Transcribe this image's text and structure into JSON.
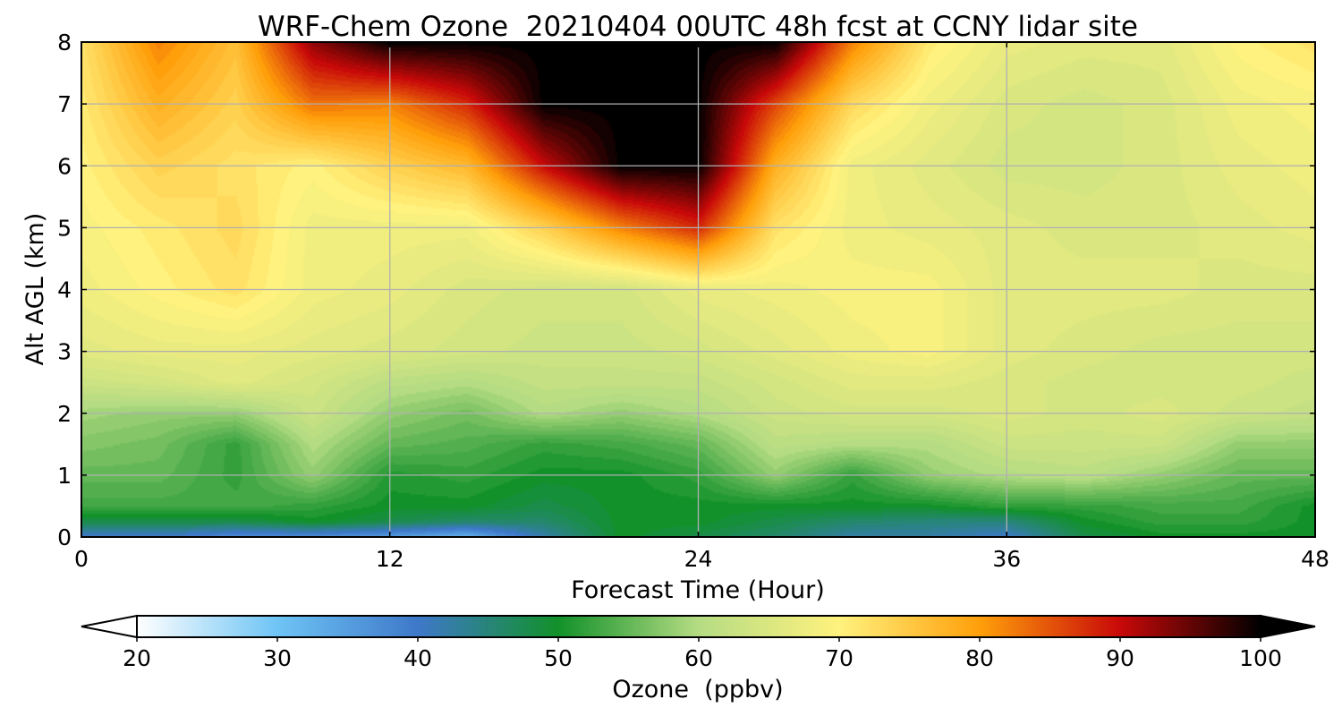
{
  "chart_data": {
    "type": "heatmap",
    "title": "WRF-Chem Ozone  20210404 00UTC 48h fcst at CCNY lidar site",
    "xlabel": "Forecast Time (Hour)",
    "ylabel": "Alt AGL (km)",
    "xlim": [
      0,
      48
    ],
    "ylim": [
      0,
      8
    ],
    "x_ticks": [
      0,
      12,
      24,
      36,
      48
    ],
    "y_ticks": [
      0,
      1,
      2,
      3,
      4,
      5,
      6,
      7,
      8
    ],
    "grid": true,
    "x_hours": [
      0,
      3,
      6,
      9,
      12,
      15,
      18,
      21,
      24,
      27,
      30,
      33,
      36,
      39,
      42,
      45,
      48
    ],
    "z_km": [
      0,
      0.25,
      0.5,
      1,
      1.5,
      2,
      2.5,
      3,
      4,
      5,
      6,
      7,
      8
    ],
    "values_ppbv": [
      [
        40,
        40,
        37,
        37,
        35,
        32,
        42,
        50,
        48,
        46,
        42,
        42,
        40,
        48,
        50,
        50,
        50
      ],
      [
        48,
        48,
        48,
        50,
        48,
        46,
        46,
        50,
        50,
        48,
        46,
        45,
        45,
        50,
        52,
        52,
        50
      ],
      [
        53,
        53,
        53,
        52,
        50,
        50,
        48,
        50,
        50,
        50,
        50,
        50,
        52,
        52,
        53,
        53,
        50
      ],
      [
        55,
        55,
        52,
        58,
        51,
        52,
        50,
        50,
        52,
        58,
        52,
        58,
        60,
        61,
        58,
        55,
        55
      ],
      [
        57,
        56,
        52,
        60,
        55,
        54,
        52,
        53,
        55,
        61,
        60,
        60,
        63,
        63,
        63,
        58,
        58
      ],
      [
        59,
        58,
        58,
        63,
        58,
        56,
        60,
        58,
        60,
        63,
        64,
        64,
        65,
        64,
        65,
        63,
        62
      ],
      [
        63,
        64,
        66,
        64,
        61,
        60,
        62,
        62,
        62,
        64,
        66,
        66,
        65,
        64,
        64,
        64,
        63
      ],
      [
        66,
        67,
        67,
        66,
        65,
        64,
        63,
        63,
        64,
        66,
        68,
        69,
        66,
        65,
        64,
        64,
        64
      ],
      [
        68,
        70,
        72,
        68,
        67,
        65,
        64,
        64,
        67,
        68,
        69,
        69,
        66,
        66,
        66,
        65,
        65
      ],
      [
        69,
        71,
        73,
        68,
        68,
        68,
        74,
        82,
        88,
        72,
        68,
        67,
        66,
        65,
        65,
        66,
        67
      ],
      [
        70,
        74,
        72,
        70,
        74,
        77,
        90,
        100,
        100,
        78,
        68,
        66,
        64,
        64,
        65,
        67,
        68
      ],
      [
        71,
        78,
        74,
        83,
        82,
        88,
        100,
        100,
        100,
        86,
        73,
        68,
        65,
        64,
        65,
        68,
        69
      ],
      [
        72,
        82,
        76,
        93,
        100,
        100,
        100,
        100,
        100,
        100,
        82,
        71,
        67,
        66,
        66,
        70,
        72
      ]
    ],
    "colorbar": {
      "label": "Ozone  (ppbv)",
      "ticks": [
        20,
        30,
        40,
        50,
        60,
        70,
        80,
        90,
        100
      ],
      "min": 20,
      "max": 100,
      "extend": "both",
      "colors": [
        "#ffffff",
        "#6ec4f5",
        "#3e78c9",
        "#12912a",
        "#b5dc83",
        "#fff27e",
        "#ff9f0a",
        "#c80909",
        "#000000"
      ]
    }
  }
}
